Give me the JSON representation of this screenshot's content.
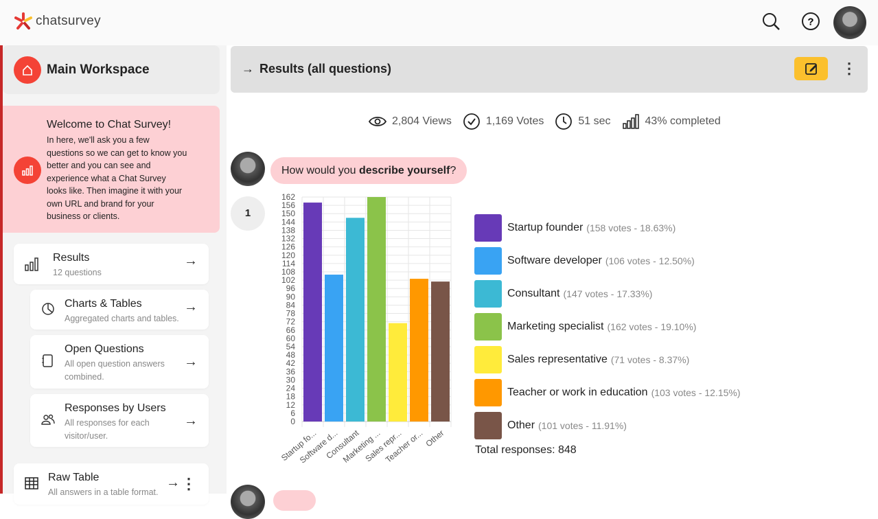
{
  "app": {
    "logo_text": "chatsurvey"
  },
  "sidebar": {
    "workspace": "Main Workspace",
    "welcome": {
      "title": "Welcome to Chat Survey!",
      "body": "In here, we'll ask you a few questions so we can get to know you better and you can see and experience what a Chat Survey looks like. Then imagine it with your own URL and brand for your business or clients."
    },
    "items": [
      {
        "title": "Results",
        "sub": "12 questions"
      },
      {
        "title": "Charts & Tables",
        "sub": "Aggregated charts and tables."
      },
      {
        "title": "Open Questions",
        "sub": "All open question answers combined."
      },
      {
        "title": "Responses by Users",
        "sub": "All responses for each visitor/user."
      },
      {
        "title": "Raw Table",
        "sub": "All answers in a table format."
      }
    ]
  },
  "header": {
    "title": "Results (all questions)"
  },
  "stats": {
    "views": "2,804 Views",
    "votes": "1,169 Votes",
    "time": "51 sec",
    "completed": "43% completed"
  },
  "question": {
    "number": "1",
    "pre": "How would you ",
    "bold": "describe yourself",
    "post": "?"
  },
  "chart_data": {
    "type": "bar",
    "categories": [
      "Startup fo...",
      "Software d...",
      "Consultant",
      "Marketing ...",
      "Sales repr...",
      "Teacher or...",
      "Other"
    ],
    "values": [
      158,
      106,
      147,
      162,
      71,
      103,
      101
    ],
    "colors": [
      "#673ab7",
      "#39a3f3",
      "#3cb9d4",
      "#8bc34a",
      "#ffeb3b",
      "#ff9800",
      "#795548"
    ],
    "ylim": [
      0,
      162
    ],
    "ytick_step": 6,
    "grid": true,
    "xlabel": "",
    "ylabel": "",
    "title": ""
  },
  "legend": [
    {
      "label": "Startup founder",
      "meta": "(158 votes - 18.63%)"
    },
    {
      "label": "Software developer",
      "meta": "(106 votes - 12.50%)"
    },
    {
      "label": "Consultant",
      "meta": "(147 votes - 17.33%)"
    },
    {
      "label": "Marketing specialist",
      "meta": "(162 votes - 19.10%)"
    },
    {
      "label": "Sales representative",
      "meta": "(71 votes - 8.37%)"
    },
    {
      "label": "Teacher or work in education",
      "meta": "(103 votes - 12.15%)"
    },
    {
      "label": "Other",
      "meta": "(101 votes - 11.91%)"
    }
  ],
  "total": "Total responses: 848"
}
